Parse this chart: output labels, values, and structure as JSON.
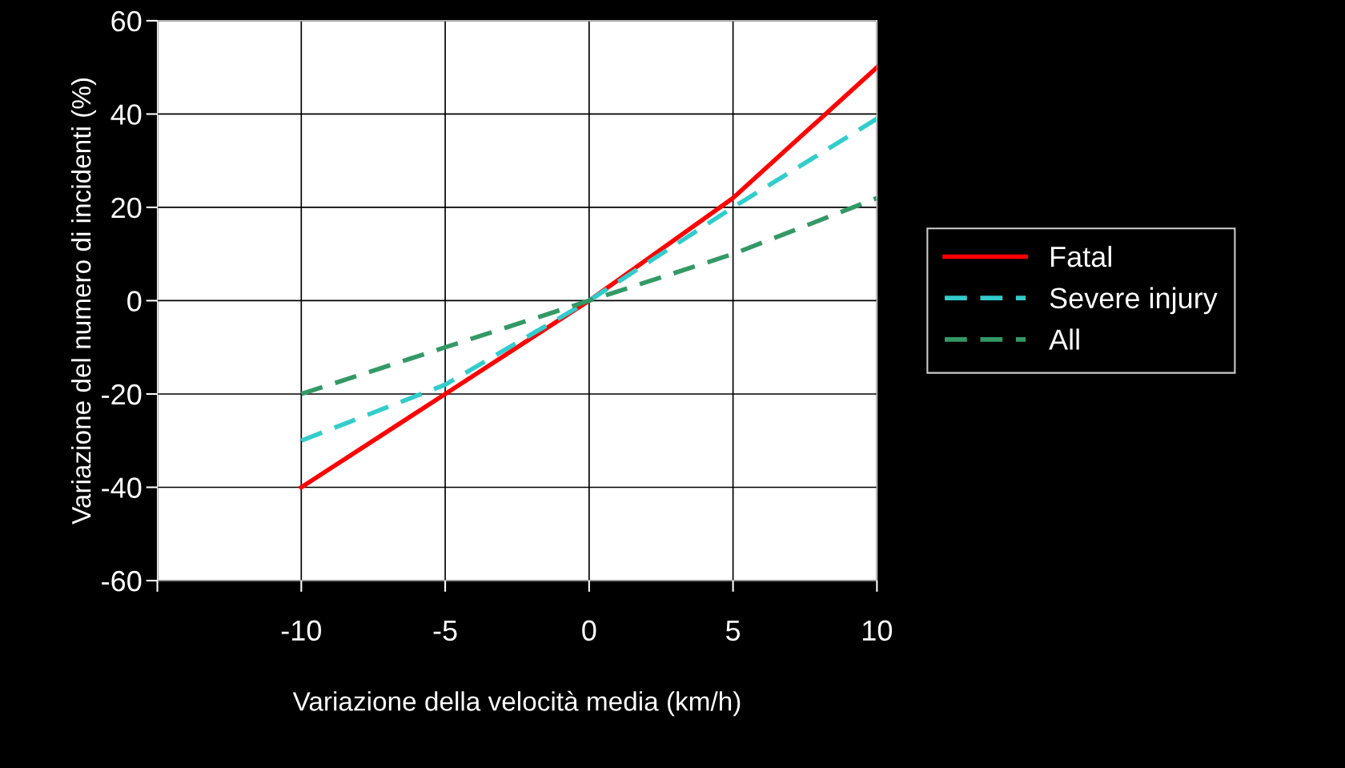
{
  "chart_data": {
    "type": "line",
    "xlabel": "Variazione della velocità media (km/h)",
    "ylabel": "Variazione del numero di incidenti (%)",
    "x": [
      -10,
      -5,
      0,
      5,
      10
    ],
    "series": [
      {
        "name": "Fatal",
        "color": "#ff0000",
        "line_style": "solid",
        "values": [
          -40,
          -20,
          0,
          22,
          50
        ]
      },
      {
        "name": "Severe injury",
        "color": "#33cccc",
        "line_style": "dashed",
        "values": [
          -30,
          -18,
          0,
          20,
          39
        ]
      },
      {
        "name": "All",
        "color": "#339966",
        "line_style": "dashed",
        "values": [
          -20,
          -10,
          0,
          10,
          22
        ]
      }
    ],
    "xlim": [
      -15,
      10
    ],
    "xticks": [
      {
        "value": -15,
        "label": null
      },
      -10,
      -5,
      0,
      5,
      10
    ],
    "ylim": [
      -60,
      60
    ],
    "yticks": [
      -60,
      -40,
      -20,
      0,
      20,
      40,
      60
    ],
    "grid": true,
    "legend": "right",
    "marker": "none"
  }
}
